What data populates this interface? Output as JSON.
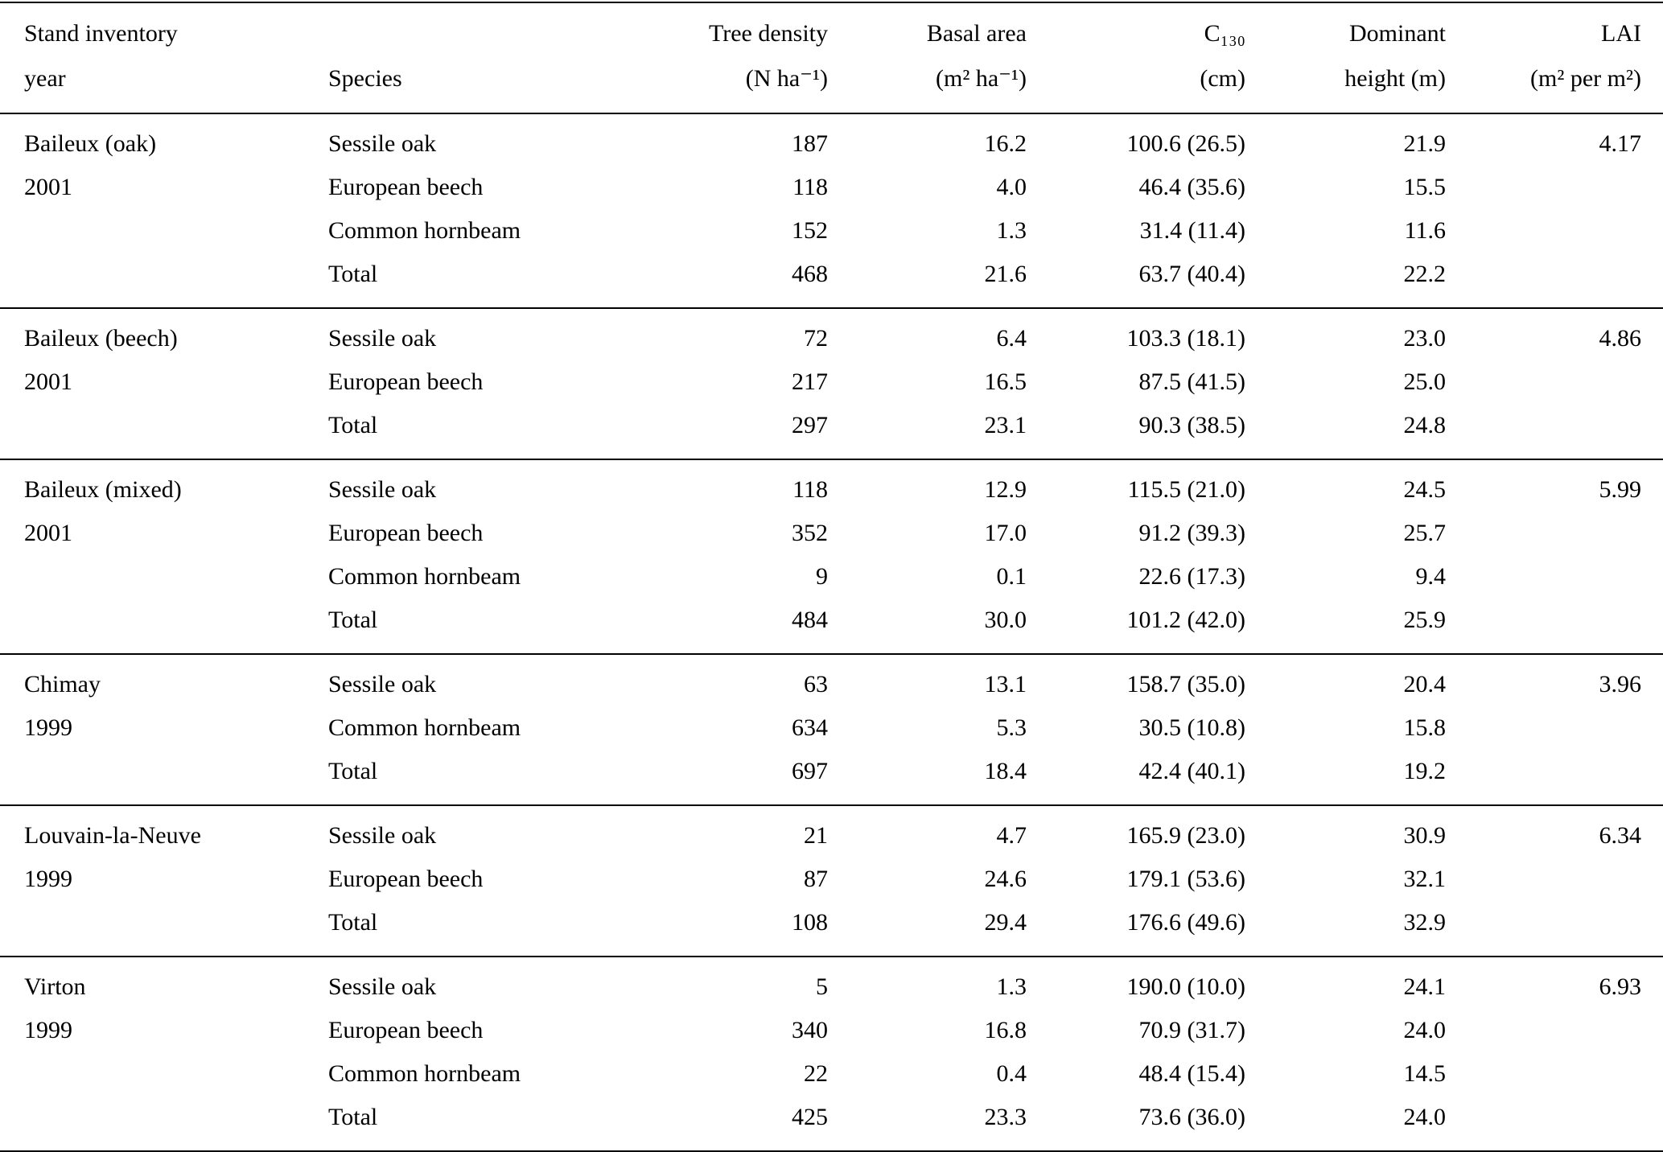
{
  "table": {
    "columns": [
      {
        "id": "stand",
        "line1": "Stand inventory",
        "line2": "year",
        "align": "left"
      },
      {
        "id": "species",
        "line1": "",
        "line2": "Species",
        "align": "left"
      },
      {
        "id": "density",
        "line1": "Tree density",
        "line2": "(N ha⁻¹)",
        "align": "right"
      },
      {
        "id": "basal_area",
        "line1": "Basal area",
        "line2": "(m² ha⁻¹)",
        "align": "right"
      },
      {
        "id": "c130",
        "line1": "C₁₃₀",
        "line2": "(cm)",
        "align": "right"
      },
      {
        "id": "dominant_height",
        "line1": "Dominant",
        "line2": "height (m)",
        "align": "right"
      },
      {
        "id": "lai",
        "line1": "LAI",
        "line2": "(m² per m²)",
        "align": "right"
      }
    ],
    "groups": [
      {
        "stand": "Baileux (oak)",
        "year": "2001",
        "rows": [
          {
            "species": "Sessile oak",
            "density": "187",
            "basal_area": "16.2",
            "c130": "100.6 (26.5)",
            "dominant_height": "21.9",
            "lai": "4.17"
          },
          {
            "species": "European beech",
            "density": "118",
            "basal_area": "4.0",
            "c130": "46.4 (35.6)",
            "dominant_height": "15.5",
            "lai": ""
          },
          {
            "species": "Common hornbeam",
            "density": "152",
            "basal_area": "1.3",
            "c130": "31.4 (11.4)",
            "dominant_height": "11.6",
            "lai": ""
          },
          {
            "species": "Total",
            "density": "468",
            "basal_area": "21.6",
            "c130": "63.7 (40.4)",
            "dominant_height": "22.2",
            "lai": ""
          }
        ]
      },
      {
        "stand": "Baileux (beech)",
        "year": "2001",
        "rows": [
          {
            "species": "Sessile oak",
            "density": "72",
            "basal_area": "6.4",
            "c130": "103.3 (18.1)",
            "dominant_height": "23.0",
            "lai": "4.86"
          },
          {
            "species": "European beech",
            "density": "217",
            "basal_area": "16.5",
            "c130": "87.5 (41.5)",
            "dominant_height": "25.0",
            "lai": ""
          },
          {
            "species": "Total",
            "density": "297",
            "basal_area": "23.1",
            "c130": "90.3 (38.5)",
            "dominant_height": "24.8",
            "lai": ""
          }
        ]
      },
      {
        "stand": "Baileux (mixed)",
        "year": "2001",
        "rows": [
          {
            "species": "Sessile oak",
            "density": "118",
            "basal_area": "12.9",
            "c130": "115.5 (21.0)",
            "dominant_height": "24.5",
            "lai": "5.99"
          },
          {
            "species": "European beech",
            "density": "352",
            "basal_area": "17.0",
            "c130": "91.2 (39.3)",
            "dominant_height": "25.7",
            "lai": ""
          },
          {
            "species": "Common hornbeam",
            "density": "9",
            "basal_area": "0.1",
            "c130": "22.6 (17.3)",
            "dominant_height": "9.4",
            "lai": ""
          },
          {
            "species": "Total",
            "density": "484",
            "basal_area": "30.0",
            "c130": "101.2 (42.0)",
            "dominant_height": "25.9",
            "lai": ""
          }
        ]
      },
      {
        "stand": "Chimay",
        "year": "1999",
        "rows": [
          {
            "species": "Sessile oak",
            "density": "63",
            "basal_area": "13.1",
            "c130": "158.7 (35.0)",
            "dominant_height": "20.4",
            "lai": "3.96"
          },
          {
            "species": "Common hornbeam",
            "density": "634",
            "basal_area": "5.3",
            "c130": "30.5 (10.8)",
            "dominant_height": "15.8",
            "lai": ""
          },
          {
            "species": "Total",
            "density": "697",
            "basal_area": "18.4",
            "c130": "42.4 (40.1)",
            "dominant_height": "19.2",
            "lai": ""
          }
        ]
      },
      {
        "stand": "Louvain-la-Neuve",
        "year": "1999",
        "rows": [
          {
            "species": "Sessile oak",
            "density": "21",
            "basal_area": "4.7",
            "c130": "165.9 (23.0)",
            "dominant_height": "30.9",
            "lai": "6.34"
          },
          {
            "species": "European beech",
            "density": "87",
            "basal_area": "24.6",
            "c130": "179.1 (53.6)",
            "dominant_height": "32.1",
            "lai": ""
          },
          {
            "species": "Total",
            "density": "108",
            "basal_area": "29.4",
            "c130": "176.6 (49.6)",
            "dominant_height": "32.9",
            "lai": ""
          }
        ]
      },
      {
        "stand": "Virton",
        "year": "1999",
        "rows": [
          {
            "species": "Sessile oak",
            "density": "5",
            "basal_area": "1.3",
            "c130": "190.0 (10.0)",
            "dominant_height": "24.1",
            "lai": "6.93"
          },
          {
            "species": "European beech",
            "density": "340",
            "basal_area": "16.8",
            "c130": "70.9 (31.7)",
            "dominant_height": "24.0",
            "lai": ""
          },
          {
            "species": "Common hornbeam",
            "density": "22",
            "basal_area": "0.4",
            "c130": "48.4 (15.4)",
            "dominant_height": "14.5",
            "lai": ""
          },
          {
            "species": "Total",
            "density": "425",
            "basal_area": "23.3",
            "c130": "73.6 (36.0)",
            "dominant_height": "24.0",
            "lai": ""
          }
        ]
      }
    ]
  }
}
